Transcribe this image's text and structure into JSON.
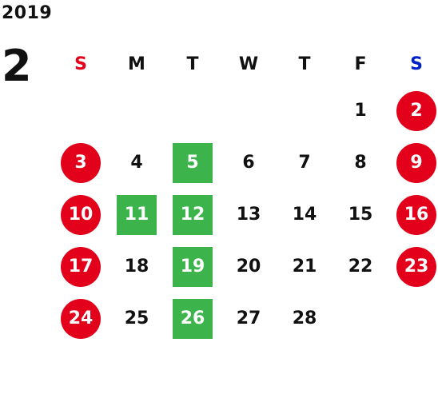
{
  "calendar": {
    "year": "2019",
    "month": "2",
    "weekdays": [
      "S",
      "M",
      "T",
      "W",
      "T",
      "F",
      "S"
    ],
    "colors": {
      "holiday": "#e2001a",
      "closed": "#3cb44b",
      "sunday_header": "#e2001a",
      "saturday_header": "#0020c8"
    },
    "weeks": [
      [
        {
          "day": "",
          "status": "empty"
        },
        {
          "day": "",
          "status": "empty"
        },
        {
          "day": "",
          "status": "empty"
        },
        {
          "day": "",
          "status": "empty"
        },
        {
          "day": "",
          "status": "empty"
        },
        {
          "day": "1",
          "status": "normal"
        },
        {
          "day": "2",
          "status": "holiday"
        }
      ],
      [
        {
          "day": "3",
          "status": "holiday"
        },
        {
          "day": "4",
          "status": "normal"
        },
        {
          "day": "5",
          "status": "closed"
        },
        {
          "day": "6",
          "status": "normal"
        },
        {
          "day": "7",
          "status": "normal"
        },
        {
          "day": "8",
          "status": "normal"
        },
        {
          "day": "9",
          "status": "holiday"
        }
      ],
      [
        {
          "day": "10",
          "status": "holiday"
        },
        {
          "day": "11",
          "status": "closed"
        },
        {
          "day": "12",
          "status": "closed"
        },
        {
          "day": "13",
          "status": "normal"
        },
        {
          "day": "14",
          "status": "normal"
        },
        {
          "day": "15",
          "status": "normal"
        },
        {
          "day": "16",
          "status": "holiday"
        }
      ],
      [
        {
          "day": "17",
          "status": "holiday"
        },
        {
          "day": "18",
          "status": "normal"
        },
        {
          "day": "19",
          "status": "closed"
        },
        {
          "day": "20",
          "status": "normal"
        },
        {
          "day": "21",
          "status": "normal"
        },
        {
          "day": "22",
          "status": "normal"
        },
        {
          "day": "23",
          "status": "holiday"
        }
      ],
      [
        {
          "day": "24",
          "status": "holiday"
        },
        {
          "day": "25",
          "status": "normal"
        },
        {
          "day": "26",
          "status": "closed"
        },
        {
          "day": "27",
          "status": "normal"
        },
        {
          "day": "28",
          "status": "normal"
        },
        {
          "day": "",
          "status": "empty"
        },
        {
          "day": "",
          "status": "empty"
        }
      ]
    ]
  }
}
